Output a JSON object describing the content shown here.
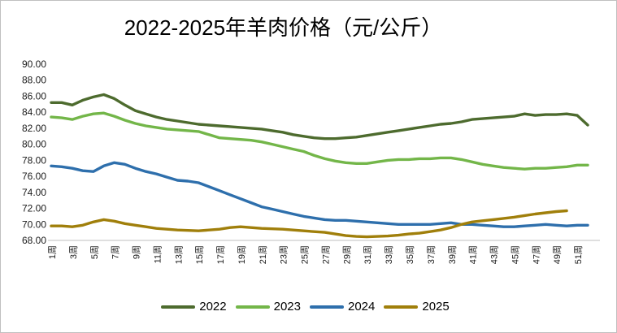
{
  "title": "2022-2025年羊肉价格（元/公斤）",
  "chart_data": {
    "type": "line",
    "title": "2022-2025年羊肉价格（元/公斤）",
    "xlabel": "",
    "ylabel": "",
    "ylim": [
      68,
      90
    ],
    "y_tick_step": 2,
    "grid": false,
    "legend_position": "bottom",
    "y_ticks": [
      "90.00",
      "88.00",
      "86.00",
      "84.00",
      "82.00",
      "80.00",
      "78.00",
      "76.00",
      "74.00",
      "72.00",
      "70.00",
      "68.00"
    ],
    "x_ticks": [
      "1周",
      "3周",
      "5周",
      "7周",
      "9周",
      "11周",
      "13周",
      "15周",
      "17周",
      "19周",
      "21周",
      "23周",
      "25周",
      "27周",
      "29周",
      "31周",
      "33周",
      "35周",
      "37周",
      "39周",
      "41周",
      "43周",
      "45周",
      "47周",
      "49周",
      "51周"
    ],
    "x_weeks_total": 52,
    "colors": {
      "axis_line": "#bfbfbf",
      "tick_label": "#1a1a1a",
      "title": "#000000",
      "border": "#c0c0c0"
    },
    "series": [
      {
        "name": "2022",
        "color": "#4d6b2e",
        "values": [
          85.2,
          85.2,
          84.9,
          85.5,
          85.9,
          86.2,
          85.7,
          84.9,
          84.2,
          83.8,
          83.4,
          83.1,
          82.9,
          82.7,
          82.5,
          82.4,
          82.3,
          82.2,
          82.1,
          82.0,
          81.9,
          81.7,
          81.5,
          81.2,
          81.0,
          80.8,
          80.7,
          80.7,
          80.8,
          80.9,
          81.1,
          81.3,
          81.5,
          81.7,
          81.9,
          82.1,
          82.3,
          82.5,
          82.6,
          82.8,
          83.1,
          83.2,
          83.3,
          83.4,
          83.5,
          83.8,
          83.6,
          83.7,
          83.7,
          83.8,
          83.6,
          82.4
        ]
      },
      {
        "name": "2023",
        "color": "#73b649",
        "values": [
          83.4,
          83.3,
          83.1,
          83.5,
          83.8,
          83.9,
          83.5,
          83.0,
          82.6,
          82.3,
          82.1,
          81.9,
          81.8,
          81.7,
          81.6,
          81.2,
          80.8,
          80.7,
          80.6,
          80.5,
          80.3,
          80.0,
          79.7,
          79.4,
          79.1,
          78.6,
          78.2,
          77.9,
          77.7,
          77.6,
          77.6,
          77.8,
          78.0,
          78.1,
          78.1,
          78.2,
          78.2,
          78.3,
          78.3,
          78.1,
          77.8,
          77.5,
          77.3,
          77.1,
          77.0,
          76.9,
          77.0,
          77.0,
          77.1,
          77.2,
          77.4,
          77.4
        ]
      },
      {
        "name": "2024",
        "color": "#2e6fac",
        "values": [
          77.3,
          77.2,
          77.0,
          76.7,
          76.6,
          77.3,
          77.7,
          77.5,
          77.0,
          76.6,
          76.3,
          75.9,
          75.5,
          75.4,
          75.2,
          74.7,
          74.2,
          73.7,
          73.2,
          72.7,
          72.2,
          71.9,
          71.6,
          71.3,
          71.0,
          70.8,
          70.6,
          70.5,
          70.5,
          70.4,
          70.3,
          70.2,
          70.1,
          70.0,
          70.0,
          70.0,
          70.0,
          70.1,
          70.2,
          70.0,
          70.0,
          69.9,
          69.8,
          69.7,
          69.7,
          69.8,
          69.9,
          70.0,
          69.9,
          69.8,
          69.9,
          69.9
        ]
      },
      {
        "name": "2025",
        "color": "#a07f0b",
        "values": [
          69.8,
          69.8,
          69.7,
          69.9,
          70.3,
          70.6,
          70.4,
          70.1,
          69.9,
          69.7,
          69.5,
          69.4,
          69.3,
          69.25,
          69.2,
          69.3,
          69.4,
          69.6,
          69.7,
          69.6,
          69.5,
          69.45,
          69.4,
          69.3,
          69.2,
          69.1,
          69.0,
          68.8,
          68.6,
          68.5,
          68.45,
          68.5,
          68.55,
          68.65,
          68.8,
          68.9,
          69.1,
          69.3,
          69.6,
          70.0,
          70.3,
          70.45,
          70.6,
          70.75,
          70.9,
          71.1,
          71.3,
          71.45,
          71.6,
          71.7
        ]
      }
    ]
  }
}
